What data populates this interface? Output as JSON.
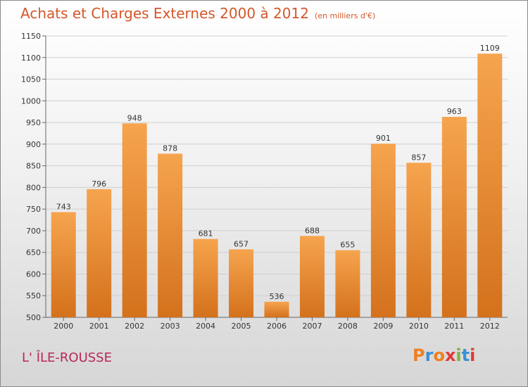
{
  "header": {
    "title": "Achats et Charges Externes 2000 à 2012",
    "subtitle": "(en milliers d'€)"
  },
  "footer": {
    "commune": "L' ÎLE-ROUSSE",
    "logo": "Proxiti",
    "logo_colors": [
      "#f07f1e",
      "#3a8fd6",
      "#f07f1e",
      "#e53935",
      "#7cb342",
      "#3a8fd6",
      "#e53935"
    ]
  },
  "chart_data": {
    "type": "bar",
    "title": "Achats et Charges Externes 2000 à 2012",
    "categories": [
      "2000",
      "2001",
      "2002",
      "2003",
      "2004",
      "2005",
      "2006",
      "2007",
      "2008",
      "2009",
      "2010",
      "2011",
      "2012"
    ],
    "values": [
      743,
      796,
      948,
      878,
      681,
      657,
      536,
      688,
      655,
      901,
      857,
      963,
      1109
    ],
    "ylim": [
      500,
      1150
    ],
    "yticks": [
      500,
      550,
      600,
      650,
      700,
      750,
      800,
      850,
      900,
      950,
      1000,
      1050,
      1100,
      1150
    ],
    "grid": true,
    "bar_color_light": "#f6a44e",
    "bar_color_dark": "#d4711c"
  }
}
